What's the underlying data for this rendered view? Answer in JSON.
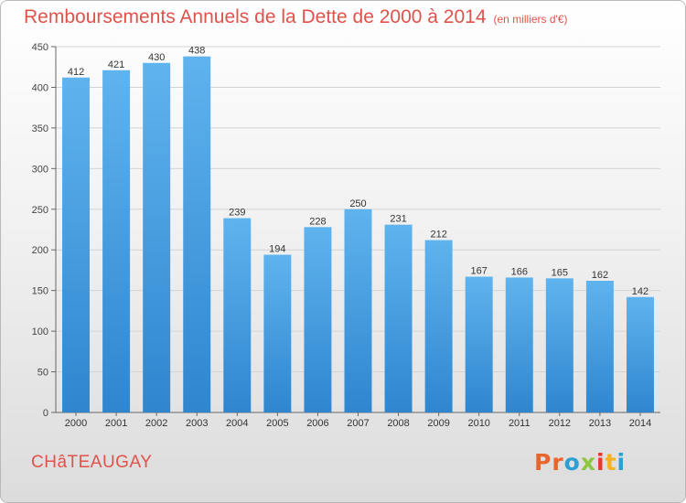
{
  "title": "Remboursements Annuels de la Dette de 2000 à 2014",
  "unit": "(en milliers d'€)",
  "commune": "CHâTEAUGAY",
  "logo": {
    "text": "Proxiti",
    "letters": [
      "P",
      "r",
      "o",
      "x",
      "i",
      "t",
      "i"
    ],
    "colors": [
      "#e8662e",
      "#e8662e",
      "#2c9fd4",
      "#8dc63f",
      "#e63a2e",
      "#f4b324",
      "#2c9fd4"
    ]
  },
  "chart_data": {
    "type": "bar",
    "categories": [
      "2000",
      "2001",
      "2002",
      "2003",
      "2004",
      "2005",
      "2006",
      "2007",
      "2008",
      "2009",
      "2010",
      "2011",
      "2012",
      "2013",
      "2014"
    ],
    "values": [
      412,
      421,
      430,
      438,
      239,
      194,
      228,
      250,
      231,
      212,
      167,
      166,
      165,
      162,
      142
    ],
    "title": "Remboursements Annuels de la Dette de 2000 à 2014",
    "xlabel": "",
    "ylabel": "",
    "ylim": [
      0,
      450
    ],
    "yticks": [
      0,
      50,
      100,
      150,
      200,
      250,
      300,
      350,
      400,
      450
    ],
    "grid": true,
    "bar_color": "#3f98dc"
  }
}
